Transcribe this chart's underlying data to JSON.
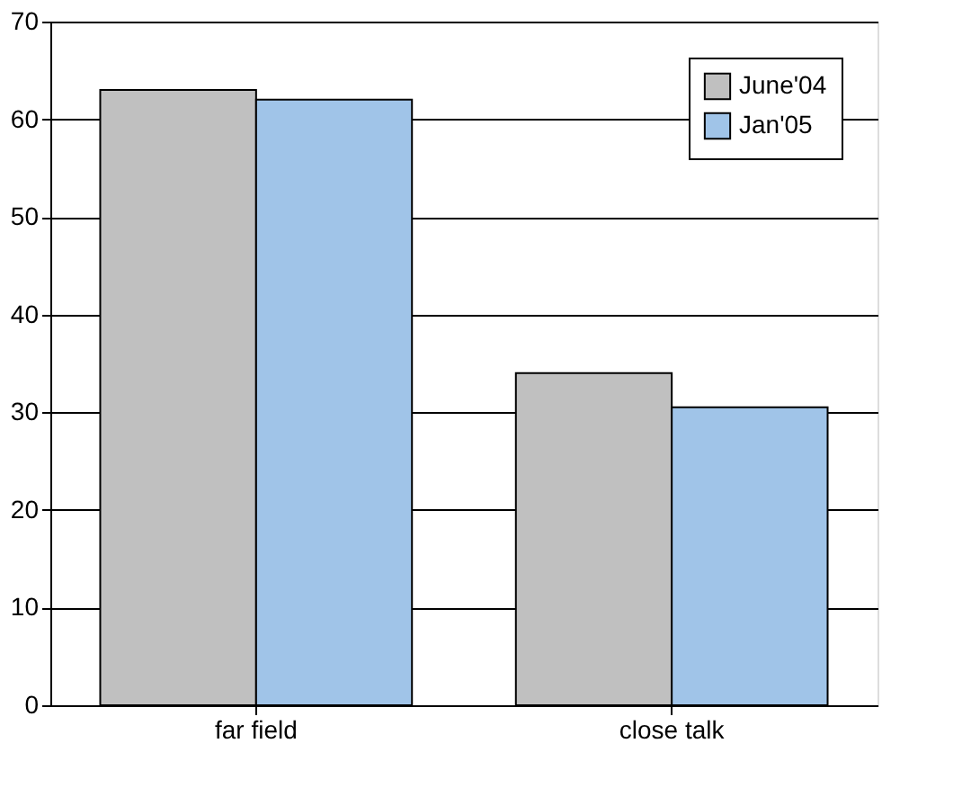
{
  "chart_data": {
    "type": "bar",
    "categories": [
      "far field",
      "close talk"
    ],
    "series": [
      {
        "name": "June'04",
        "color": "#c0c0c0",
        "values": [
          63,
          34
        ]
      },
      {
        "name": "Jan'05",
        "color": "#a0c4e8",
        "values": [
          62,
          30.5
        ]
      }
    ],
    "ylim": [
      0,
      70
    ],
    "yticks": [
      0,
      10,
      20,
      30,
      40,
      50,
      60,
      70
    ],
    "grid": "y",
    "legend": "top right"
  }
}
